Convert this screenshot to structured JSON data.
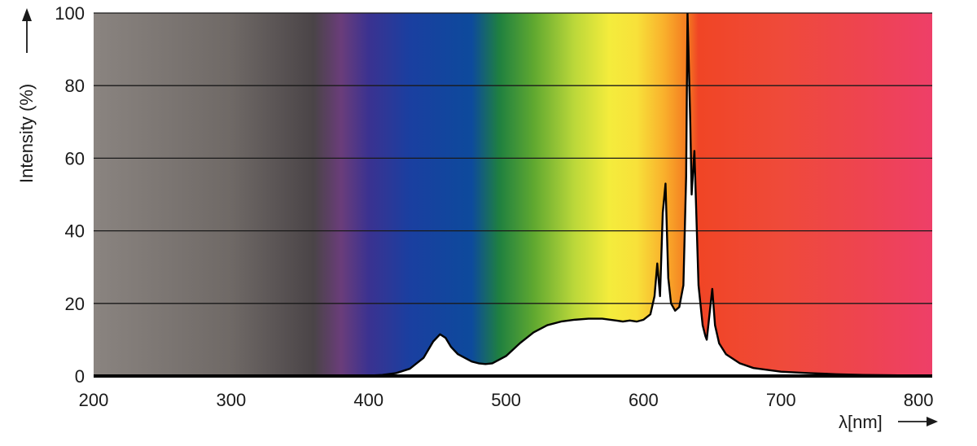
{
  "colors": {
    "curve": "#000000",
    "gridline": "#1a1a1a",
    "fill": "#ffffff"
  },
  "chart_data": {
    "type": "area",
    "title": "",
    "xlabel": "λ[nm]",
    "ylabel": "Intensity (%)",
    "xlim": [
      200,
      810
    ],
    "ylim": [
      0,
      100
    ],
    "x_ticks": [
      200,
      300,
      400,
      500,
      600,
      700,
      800
    ],
    "y_ticks": [
      0,
      20,
      40,
      60,
      80,
      100
    ],
    "grid": "horizontal",
    "background": "visible spectrum color gradient",
    "spectrum_stops": [
      {
        "nm": 200,
        "color": "#8a8480"
      },
      {
        "nm": 300,
        "color": "#6f6966"
      },
      {
        "nm": 360,
        "color": "#4a4447"
      },
      {
        "nm": 380,
        "color": "#6a3d7a"
      },
      {
        "nm": 400,
        "color": "#3b3290"
      },
      {
        "nm": 430,
        "color": "#1a3fa0"
      },
      {
        "nm": 475,
        "color": "#0d4a9c"
      },
      {
        "nm": 495,
        "color": "#1f8040"
      },
      {
        "nm": 520,
        "color": "#5fa830"
      },
      {
        "nm": 550,
        "color": "#bcd83a"
      },
      {
        "nm": 575,
        "color": "#f4ec3c"
      },
      {
        "nm": 595,
        "color": "#f8e13a"
      },
      {
        "nm": 615,
        "color": "#f9b02c"
      },
      {
        "nm": 632,
        "color": "#f47a20"
      },
      {
        "nm": 640,
        "color": "#f04525"
      },
      {
        "nm": 700,
        "color": "#ef4a3a"
      },
      {
        "nm": 760,
        "color": "#ee4450"
      },
      {
        "nm": 810,
        "color": "#ee3f68"
      }
    ],
    "series": [
      {
        "x": [
          200,
          380,
          400,
          410,
          420,
          430,
          440,
          447,
          452,
          456,
          460,
          465,
          470,
          475,
          480,
          485,
          490,
          500,
          510,
          520,
          530,
          540,
          550,
          560,
          570,
          580,
          585,
          590,
          595,
          600,
          605,
          608,
          610,
          612,
          614,
          616,
          618,
          620,
          623,
          626,
          629,
          631,
          632,
          634,
          635,
          637,
          640,
          643,
          645,
          646,
          648,
          650,
          652,
          655,
          660,
          670,
          680,
          700,
          720,
          740,
          760,
          780,
          800,
          810
        ],
        "y": [
          0,
          0,
          0.1,
          0.3,
          0.8,
          2,
          5,
          9.5,
          11.5,
          10.5,
          8,
          6,
          5,
          4,
          3.5,
          3.3,
          3.5,
          5.5,
          9,
          12,
          14,
          15,
          15.5,
          15.8,
          15.8,
          15.3,
          15,
          15.3,
          15,
          15.5,
          17,
          22,
          31,
          22,
          45,
          53,
          27,
          20,
          18,
          19,
          25,
          55,
          100,
          70,
          50,
          62,
          25,
          14,
          11,
          10,
          17,
          24,
          14,
          9,
          6,
          3.5,
          2.2,
          1.2,
          0.8,
          0.5,
          0.3,
          0.2,
          0.1,
          0
        ]
      }
    ]
  }
}
